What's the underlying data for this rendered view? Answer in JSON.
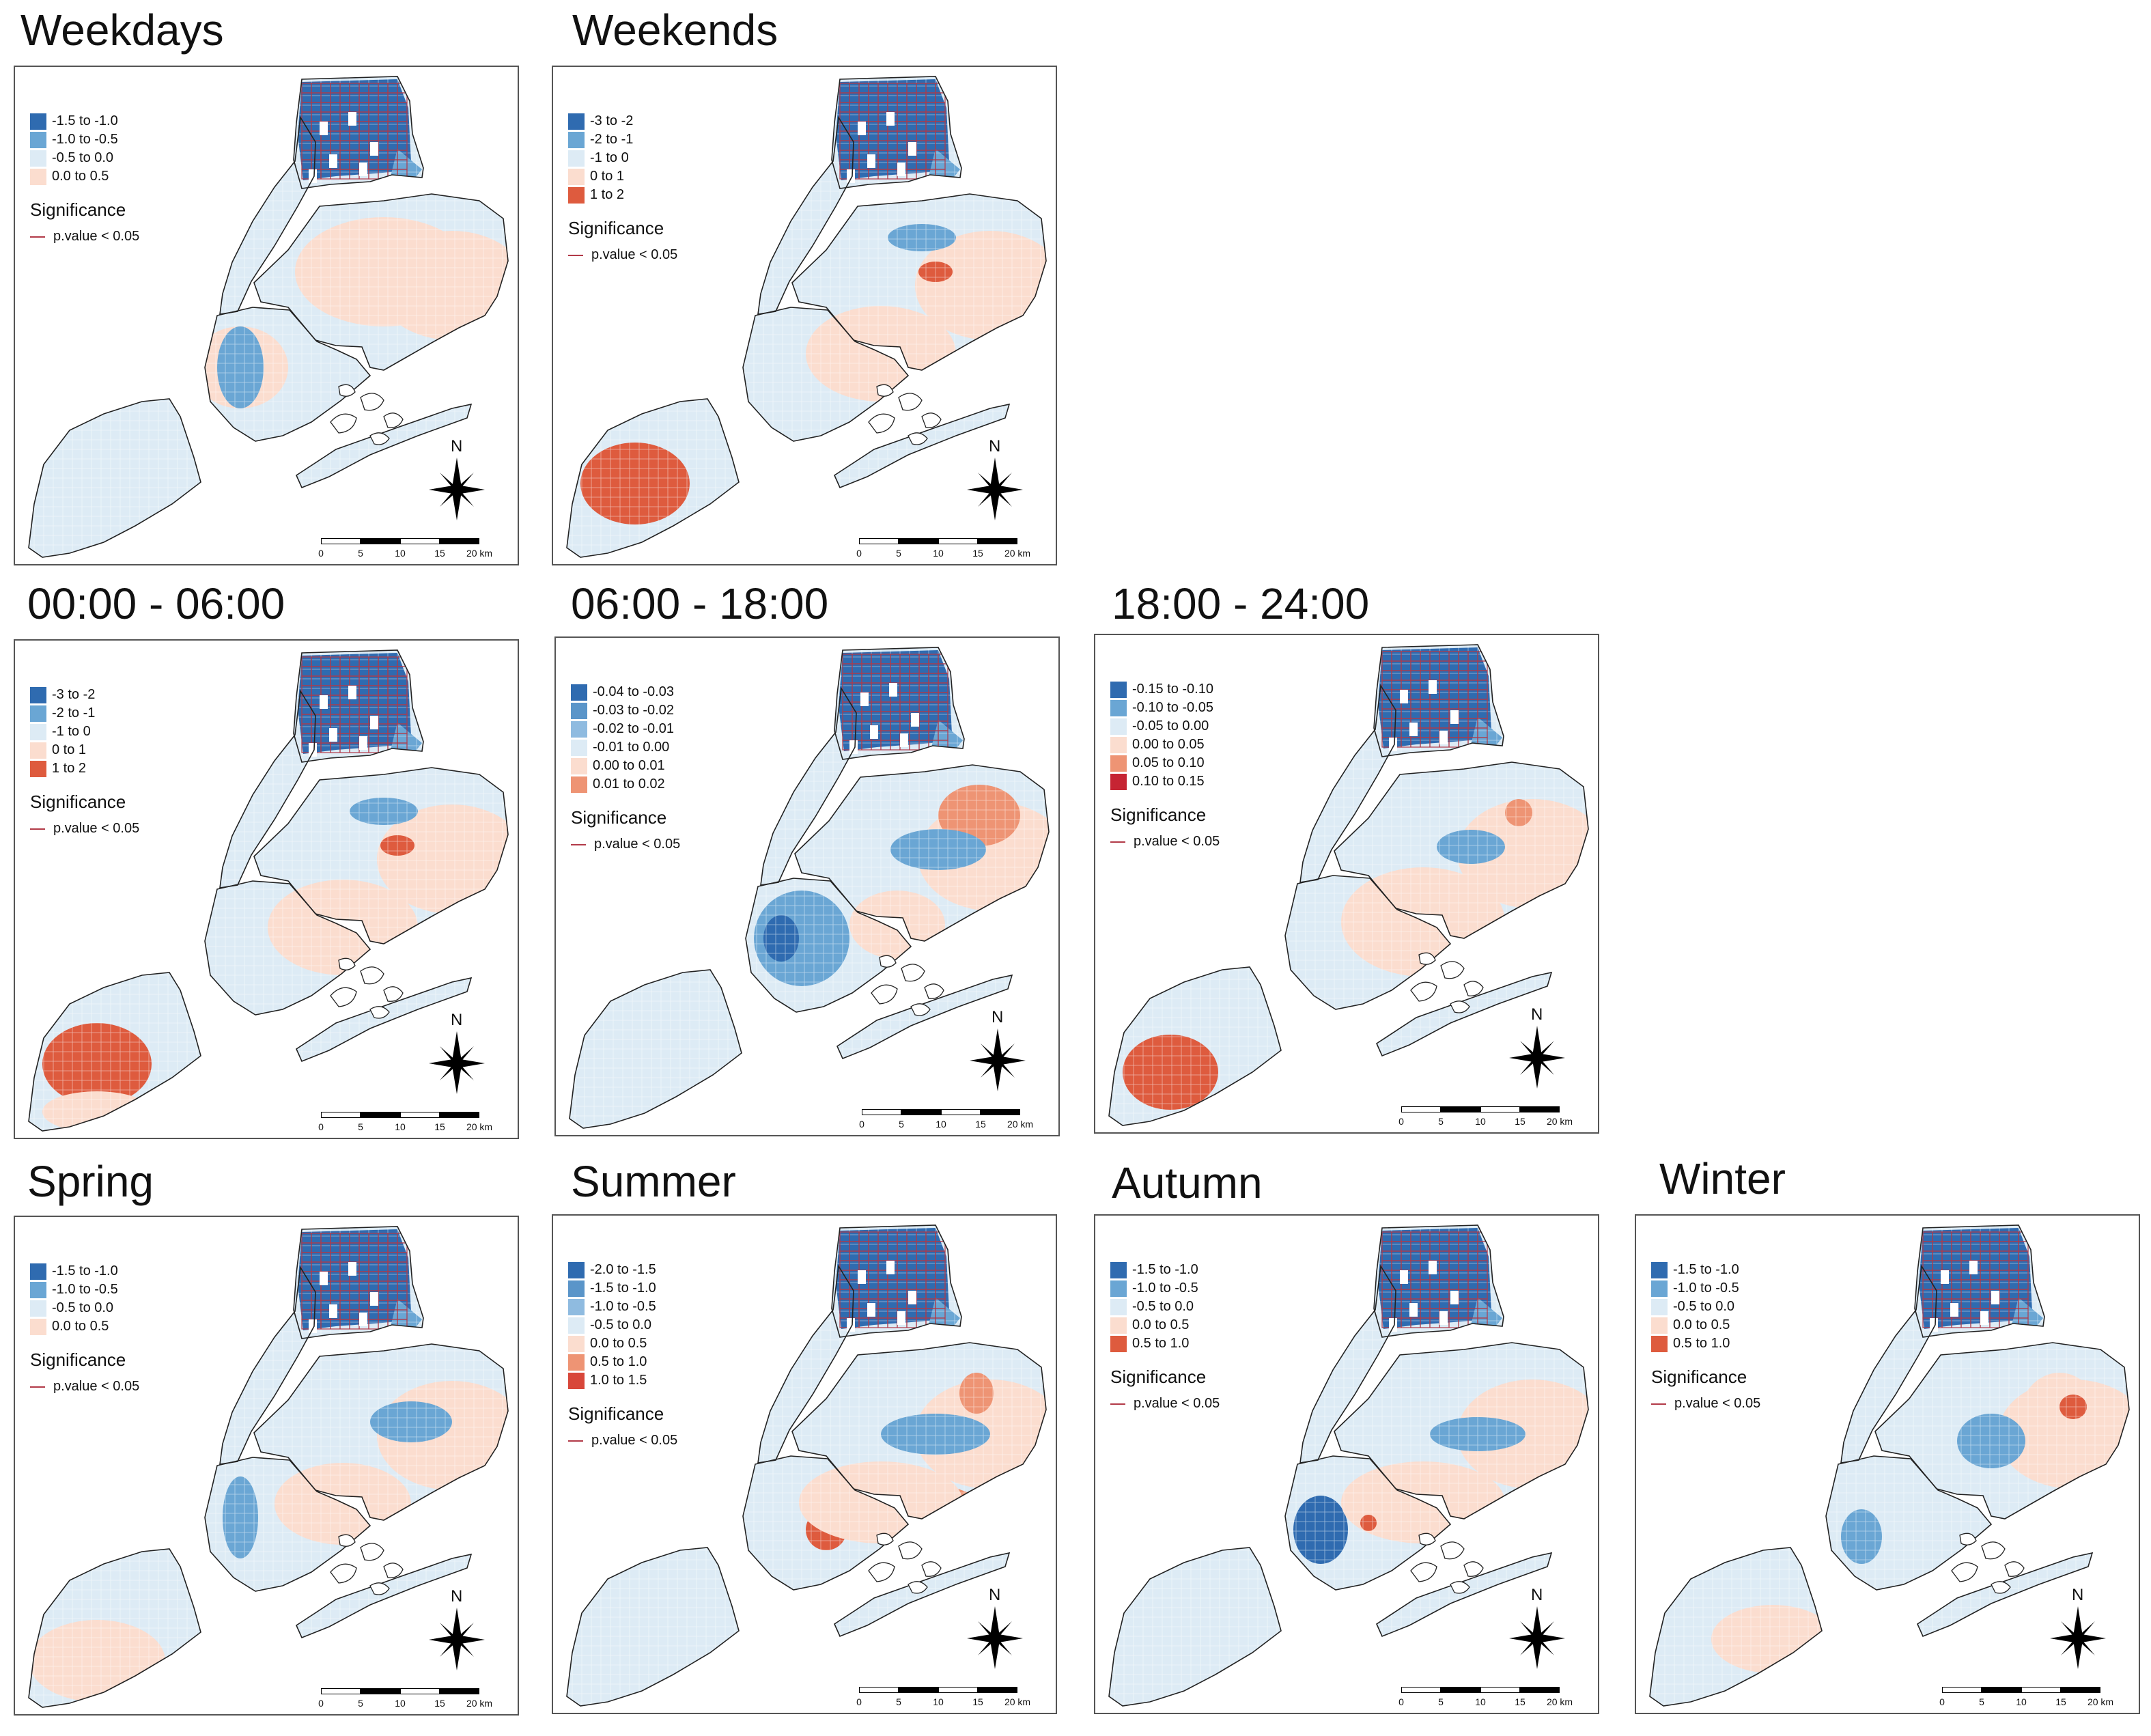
{
  "significance_title": "Significance",
  "significance_item": "p.value < 0.05",
  "north_label": "N",
  "scale": {
    "ticks": [
      "0",
      "5",
      "10",
      "15",
      "20 km"
    ]
  },
  "colors": {
    "blue_dark": "#2f6bb0",
    "blue_mid": "#6aa6d4",
    "blue_light": "#bcd7ec",
    "blue_pale": "#ddebf5",
    "red_pale": "#fbddcf",
    "red_mid": "#ee9474",
    "red_strong": "#de5b3e",
    "red_dark": "#c62433",
    "significance": "#b23a48",
    "outline": "#222222"
  },
  "panels": [
    {
      "id": "weekdays",
      "title": "Weekdays",
      "legend": [
        {
          "label": "-1.5 to -1.0",
          "color": "#2f6bb0"
        },
        {
          "label": "-1.0 to -0.5",
          "color": "#6aa6d4"
        },
        {
          "label": "-0.5 to 0.0",
          "color": "#ddebf5"
        },
        {
          "label": "0.0 to 0.5",
          "color": "#fbddcf"
        }
      ]
    },
    {
      "id": "weekends",
      "title": "Weekends",
      "legend": [
        {
          "label": "-3 to -2",
          "color": "#2f6bb0"
        },
        {
          "label": "-2 to -1",
          "color": "#6aa6d4"
        },
        {
          "label": "-1 to 0",
          "color": "#ddebf5"
        },
        {
          "label": "0 to 1",
          "color": "#fbddcf"
        },
        {
          "label": "1 to 2",
          "color": "#de5b3e"
        }
      ]
    },
    {
      "id": "night",
      "title": "00:00 - 06:00",
      "legend": [
        {
          "label": "-3 to -2",
          "color": "#2f6bb0"
        },
        {
          "label": "-2 to -1",
          "color": "#6aa6d4"
        },
        {
          "label": "-1 to 0",
          "color": "#ddebf5"
        },
        {
          "label": "0 to 1",
          "color": "#fbddcf"
        },
        {
          "label": "1 to 2",
          "color": "#de5b3e"
        }
      ]
    },
    {
      "id": "day",
      "title": "06:00 - 18:00",
      "legend": [
        {
          "label": "-0.04 to -0.03",
          "color": "#2f6bb0"
        },
        {
          "label": "-0.03 to -0.02",
          "color": "#5a95c9"
        },
        {
          "label": "-0.02 to -0.01",
          "color": "#8fbbe0"
        },
        {
          "label": "-0.01 to 0.00",
          "color": "#ddebf5"
        },
        {
          "label": "0.00 to 0.01",
          "color": "#fbddcf"
        },
        {
          "label": "0.01 to 0.02",
          "color": "#ee9474"
        }
      ]
    },
    {
      "id": "evening",
      "title": "18:00 - 24:00",
      "legend": [
        {
          "label": "-0.15 to -0.10",
          "color": "#2f6bb0"
        },
        {
          "label": "-0.10 to -0.05",
          "color": "#6aa6d4"
        },
        {
          "label": "-0.05 to 0.00",
          "color": "#ddebf5"
        },
        {
          "label": "0.00 to 0.05",
          "color": "#fbddcf"
        },
        {
          "label": "0.05 to 0.10",
          "color": "#ee9474"
        },
        {
          "label": "0.10 to 0.15",
          "color": "#c62433"
        }
      ]
    },
    {
      "id": "spring",
      "title": "Spring",
      "legend": [
        {
          "label": "-1.5 to -1.0",
          "color": "#2f6bb0"
        },
        {
          "label": "-1.0 to -0.5",
          "color": "#6aa6d4"
        },
        {
          "label": "-0.5 to 0.0",
          "color": "#ddebf5"
        },
        {
          "label": "0.0 to 0.5",
          "color": "#fbddcf"
        }
      ]
    },
    {
      "id": "summer",
      "title": "Summer",
      "legend": [
        {
          "label": "-2.0 to -1.5",
          "color": "#2f6bb0"
        },
        {
          "label": "-1.5 to -1.0",
          "color": "#5a95c9"
        },
        {
          "label": "-1.0 to -0.5",
          "color": "#8fbbe0"
        },
        {
          "label": "-0.5 to 0.0",
          "color": "#ddebf5"
        },
        {
          "label": "0.0 to 0.5",
          "color": "#fbddcf"
        },
        {
          "label": "0.5 to 1.0",
          "color": "#ee9474"
        },
        {
          "label": "1.0 to 1.5",
          "color": "#d8473a"
        }
      ]
    },
    {
      "id": "autumn",
      "title": "Autumn",
      "legend": [
        {
          "label": "-1.5 to -1.0",
          "color": "#2f6bb0"
        },
        {
          "label": "-1.0 to -0.5",
          "color": "#6aa6d4"
        },
        {
          "label": "-0.5 to 0.0",
          "color": "#ddebf5"
        },
        {
          "label": "0.0 to 0.5",
          "color": "#fbddcf"
        },
        {
          "label": "0.5 to 1.0",
          "color": "#de5b3e"
        }
      ]
    },
    {
      "id": "winter",
      "title": "Winter",
      "legend": [
        {
          "label": "-1.5 to -1.0",
          "color": "#2f6bb0"
        },
        {
          "label": "-1.0 to -0.5",
          "color": "#6aa6d4"
        },
        {
          "label": "-0.5 to 0.0",
          "color": "#ddebf5"
        },
        {
          "label": "0.0 to 0.5",
          "color": "#fbddcf"
        },
        {
          "label": "0.5 to 1.0",
          "color": "#de5b3e"
        }
      ]
    }
  ]
}
